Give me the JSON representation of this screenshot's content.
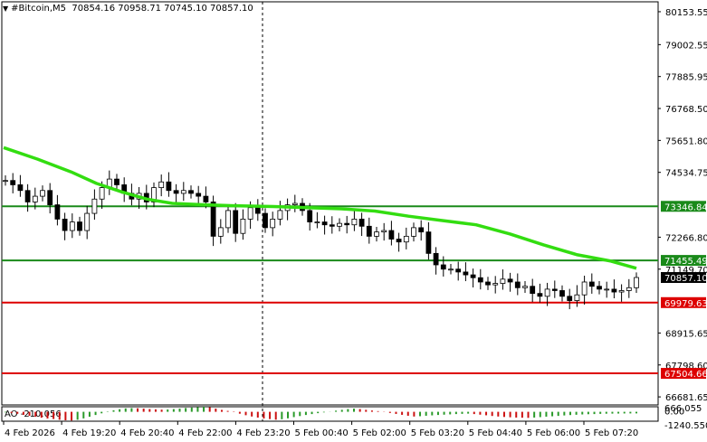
{
  "header": {
    "symbol": "#Bitcoin,M5",
    "ohlc": "70854.16 70958.71 70745.10 70857.10"
  },
  "ao_header": {
    "label": "AO -210.056"
  },
  "price_axis": {
    "ticks": [
      "80153.55",
      "79002.55",
      "77885.95",
      "76768.50",
      "75651.80",
      "74534.75",
      "73346.84",
      "72266.80",
      "71455.49",
      "71149.70",
      "70857.10",
      "69979.63",
      "68915.65",
      "67798.60",
      "67504.66",
      "66681.65"
    ]
  },
  "ao_axis": {
    "ticks": [
      "666.055",
      "0.00",
      "-1240.550"
    ]
  },
  "time_axis": {
    "labels": [
      "4 Feb 2026",
      "4 Feb 19:20",
      "4 Feb 20:40",
      "4 Feb 22:00",
      "4 Feb 23:20",
      "5 Feb 00:40",
      "5 Feb 02:00",
      "5 Feb 03:20",
      "5 Feb 04:40",
      "5 Feb 06:00",
      "5 Feb 07:20"
    ]
  },
  "colors": {
    "green_level": "#1a8a1a",
    "red_level": "#dd0000",
    "moving_average": "#33dd11",
    "ao_up": "#2a9a2a",
    "ao_down": "#cc1111",
    "grid": "#000000",
    "candle": "#000000"
  },
  "chart_data": [
    {
      "type": "candlestick",
      "title": "#Bitcoin,M5",
      "timeframe": "M5",
      "last": {
        "open": 70854.16,
        "high": 70958.71,
        "low": 70745.1,
        "close": 70857.1
      },
      "ylim": [
        66400,
        80500
      ],
      "grid": "vertical-dashed",
      "horizontal_levels": [
        {
          "value": 73346.84,
          "label": "73346.84",
          "color": "green"
        },
        {
          "value": 71455.49,
          "label": "71455.49",
          "color": "green"
        },
        {
          "value": 69979.63,
          "label": "69979.63",
          "color": "red"
        },
        {
          "value": 67504.66,
          "label": "67504.66",
          "color": "red"
        }
      ],
      "current_price": {
        "value": 70857.1,
        "label": "70857.10"
      },
      "moving_average_points": [
        [
          0,
          75400
        ],
        [
          8,
          75000
        ],
        [
          16,
          74550
        ],
        [
          22,
          74150
        ],
        [
          28,
          73850
        ],
        [
          34,
          73600
        ],
        [
          40,
          73450
        ],
        [
          48,
          73400
        ],
        [
          56,
          73360
        ],
        [
          64,
          73340
        ],
        [
          72,
          73300
        ],
        [
          80,
          73260
        ],
        [
          88,
          73180
        ],
        [
          96,
          73000
        ],
        [
          104,
          72850
        ],
        [
          112,
          72700
        ],
        [
          120,
          72380
        ],
        [
          128,
          72000
        ],
        [
          136,
          71650
        ],
        [
          144,
          71430
        ],
        [
          150,
          71180
        ]
      ],
      "close_series": [
        74250,
        74100,
        73900,
        73500,
        73700,
        73900,
        73400,
        72900,
        72500,
        72800,
        72500,
        73100,
        73600,
        74000,
        74300,
        74100,
        73800,
        73600,
        73800,
        73500,
        74000,
        74200,
        73900,
        73800,
        73900,
        73800,
        73700,
        73500,
        72300,
        72600,
        73200,
        72400,
        72900,
        73300,
        73100,
        72600,
        72900,
        73200,
        73400,
        73450,
        73200,
        72800,
        72800,
        72700,
        72650,
        72750,
        72700,
        72900,
        72650,
        72300,
        72450,
        72500,
        72200,
        72100,
        72300,
        72600,
        72450,
        71700,
        71300,
        71150,
        71150,
        71050,
        70950,
        70850,
        70700,
        70600,
        70650,
        70800,
        70700,
        70500,
        70550,
        70300,
        70200,
        70450,
        70400,
        70200,
        70050,
        70250,
        70700,
        70550,
        70450,
        70450,
        70350,
        70400,
        70500,
        70857
      ]
    },
    {
      "type": "bar",
      "title": "AO",
      "last_value": -210.056,
      "ylim": [
        -1240.55,
        666.055
      ],
      "values": [
        -80,
        -160,
        -260,
        -400,
        -520,
        -650,
        -780,
        -880,
        -950,
        -1050,
        -1120,
        -1150,
        -1050,
        -870,
        -650,
        -420,
        -200,
        50,
        200,
        340,
        450,
        480,
        460,
        420,
        360,
        320,
        280,
        300,
        360,
        420,
        500,
        560,
        620,
        660,
        600,
        420,
        250,
        120,
        -50,
        -250,
        -450,
        -620,
        -760,
        -880,
        -960,
        -1040,
        -980,
        -860,
        -700,
        -560,
        -420,
        -300,
        -180,
        -80,
        20,
        150,
        260,
        360,
        420,
        360,
        260,
        170,
        90,
        -30,
        -150,
        -280,
        -400,
        -520,
        -620,
        -580,
        -520,
        -470,
        -420,
        -380,
        -340,
        -300,
        -270,
        -240,
        -300,
        -380,
        -460,
        -550,
        -620,
        -680,
        -720,
        -760,
        -780,
        -800,
        -760,
        -700,
        -640,
        -590,
        -540,
        -480,
        -430,
        -390,
        -350,
        -320,
        -300,
        -270,
        -250,
        -240,
        -230,
        -220,
        -215,
        -210
      ]
    }
  ]
}
